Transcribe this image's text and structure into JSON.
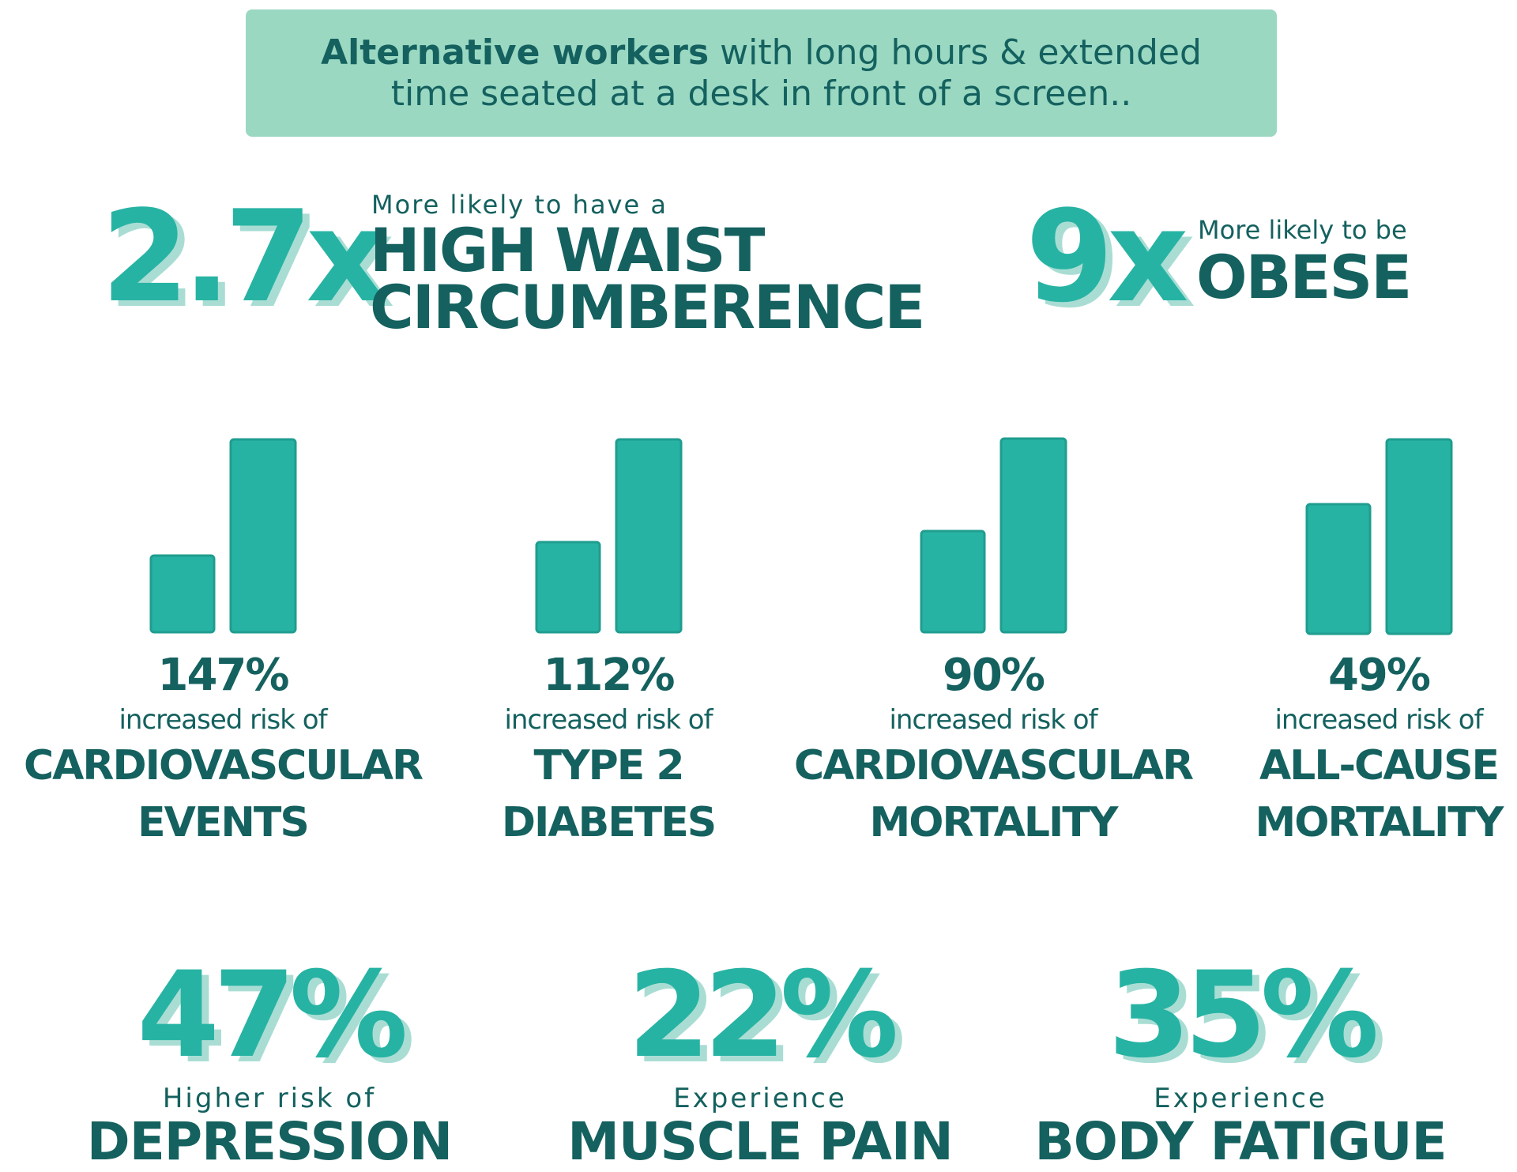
{
  "header": {
    "bold": "Alternative workers",
    "line1_rest": "with long hours & extended",
    "line2": "time seated at a desk in front of a screen.."
  },
  "stats": [
    {
      "value": "2.7x",
      "intro": "More likely to have a",
      "label_lines": [
        "HIGH WAIST",
        "CIRCUMBERENCE"
      ]
    },
    {
      "value": "9x",
      "intro": "More likely to be",
      "label_lines": [
        "OBESE"
      ]
    }
  ],
  "risks": [
    {
      "value": "147%",
      "intro": "increased risk of",
      "label_lines": [
        "CARDIOVASCULAR",
        "EVENTS"
      ]
    },
    {
      "value": "112%",
      "intro": "increased risk of",
      "label_lines": [
        "TYPE 2",
        "DIABETES"
      ]
    },
    {
      "value": "90%",
      "intro": "increased risk of",
      "label_lines": [
        "CARDIOVASCULAR",
        "MORTALITY"
      ]
    },
    {
      "value": "49%",
      "intro": "increased risk of",
      "label_lines": [
        "ALL-CAUSE",
        "MORTALITY"
      ]
    }
  ],
  "outcomes": [
    {
      "value": "47%",
      "intro": "Higher risk of",
      "label": "DEPRESSION"
    },
    {
      "value": "22%",
      "intro": "Experience",
      "label": "MUSCLE PAIN"
    },
    {
      "value": "35%",
      "intro": "Experience",
      "label": "BODY FATIGUE"
    }
  ]
}
